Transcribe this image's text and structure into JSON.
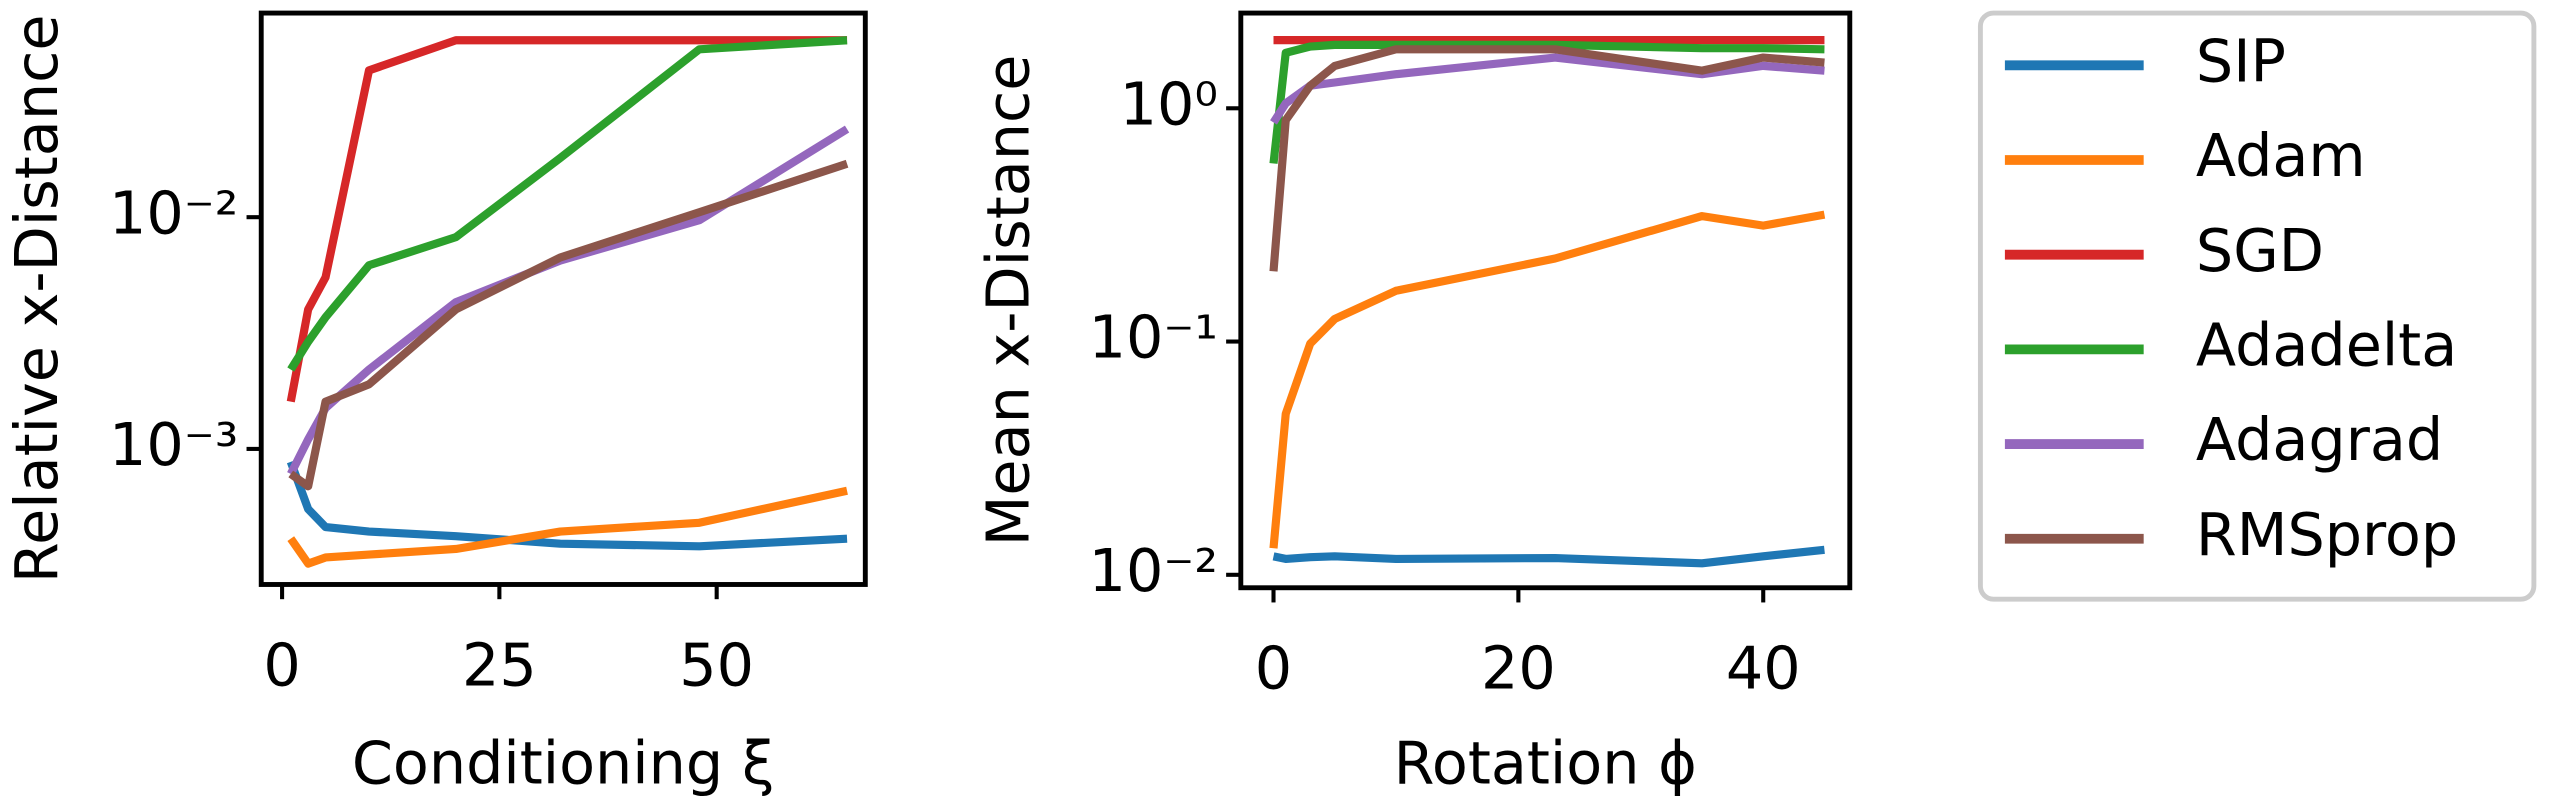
{
  "chart_data": [
    {
      "type": "line",
      "xlabel": "Conditioning ξ",
      "ylabel": "Relative x-Distance",
      "log_y": true,
      "x": [
        1,
        3,
        5,
        10,
        20,
        32,
        48,
        65
      ],
      "xlim": [
        -2.4,
        67.1
      ],
      "ylim": [
        0.00026,
        0.076
      ],
      "xticks": [
        0,
        25,
        50
      ],
      "yticks": [
        {
          "value": 0.001,
          "label": "10⁻³"
        },
        {
          "value": 0.01,
          "label": "10⁻²"
        }
      ],
      "series": [
        {
          "name": "SIP",
          "color": "#1f77b4",
          "values": [
            0.00088,
            0.00055,
            0.00046,
            0.00044,
            0.00042,
            0.00039,
            0.00038,
            0.00041
          ]
        },
        {
          "name": "Adam",
          "color": "#ff7f0e",
          "values": [
            0.00041,
            0.00032,
            0.00034,
            0.00035,
            0.00037,
            0.00044,
            0.00048,
            0.00066
          ]
        },
        {
          "name": "SGD",
          "color": "#d62728",
          "values": [
            0.0016,
            0.004,
            0.0055,
            0.043,
            0.058,
            0.058,
            0.058,
            0.058
          ]
        },
        {
          "name": "Adadelta",
          "color": "#2ca02c",
          "values": [
            0.0022,
            0.0029,
            0.0037,
            0.0062,
            0.0082,
            0.018,
            0.053,
            0.058
          ]
        },
        {
          "name": "Adagrad",
          "color": "#9467bd",
          "values": [
            0.00078,
            0.0011,
            0.0015,
            0.0022,
            0.0043,
            0.0065,
            0.0097,
            0.024
          ]
        },
        {
          "name": "RMSprop",
          "color": "#8c564b",
          "values": [
            0.00078,
            0.00069,
            0.0016,
            0.0019,
            0.004,
            0.0067,
            0.0105,
            0.017
          ]
        }
      ]
    },
    {
      "type": "line",
      "xlabel": "Rotation ϕ",
      "ylabel": "Mean x-Distance",
      "log_y": true,
      "x": [
        0,
        1,
        3,
        5,
        10,
        23,
        35,
        40,
        45
      ],
      "xlim": [
        -2.67,
        47.07
      ],
      "ylim": [
        0.0088,
        2.56
      ],
      "xticks": [
        0,
        20,
        40
      ],
      "yticks": [
        {
          "value": 0.01,
          "label": "10⁻²"
        },
        {
          "value": 0.1,
          "label": "10⁻¹"
        },
        {
          "value": 1,
          "label": "10⁰"
        }
      ],
      "series": [
        {
          "color": "#1f77b4",
          "values": [
            0.012,
            0.0117,
            0.0119,
            0.012,
            0.0117,
            0.0118,
            0.0112,
            0.012,
            0.0128
          ]
        },
        {
          "color": "#ff7f0e",
          "values": [
            0.013,
            0.049,
            0.098,
            0.125,
            0.165,
            0.227,
            0.345,
            0.314,
            0.35
          ]
        },
        {
          "color": "#d62728",
          "values": [
            1.96,
            1.96,
            1.96,
            1.96,
            1.96,
            1.96,
            1.96,
            1.96,
            1.96
          ]
        },
        {
          "color": "#2ca02c",
          "values": [
            0.58,
            1.73,
            1.84,
            1.87,
            1.87,
            1.87,
            1.81,
            1.81,
            1.79
          ]
        },
        {
          "color": "#9467bd",
          "values": [
            0.87,
            1.05,
            1.25,
            1.29,
            1.4,
            1.65,
            1.4,
            1.52,
            1.45
          ]
        },
        {
          "color": "#8c564b",
          "values": [
            0.2,
            0.89,
            1.25,
            1.52,
            1.79,
            1.79,
            1.45,
            1.65,
            1.57
          ]
        }
      ]
    }
  ]
}
